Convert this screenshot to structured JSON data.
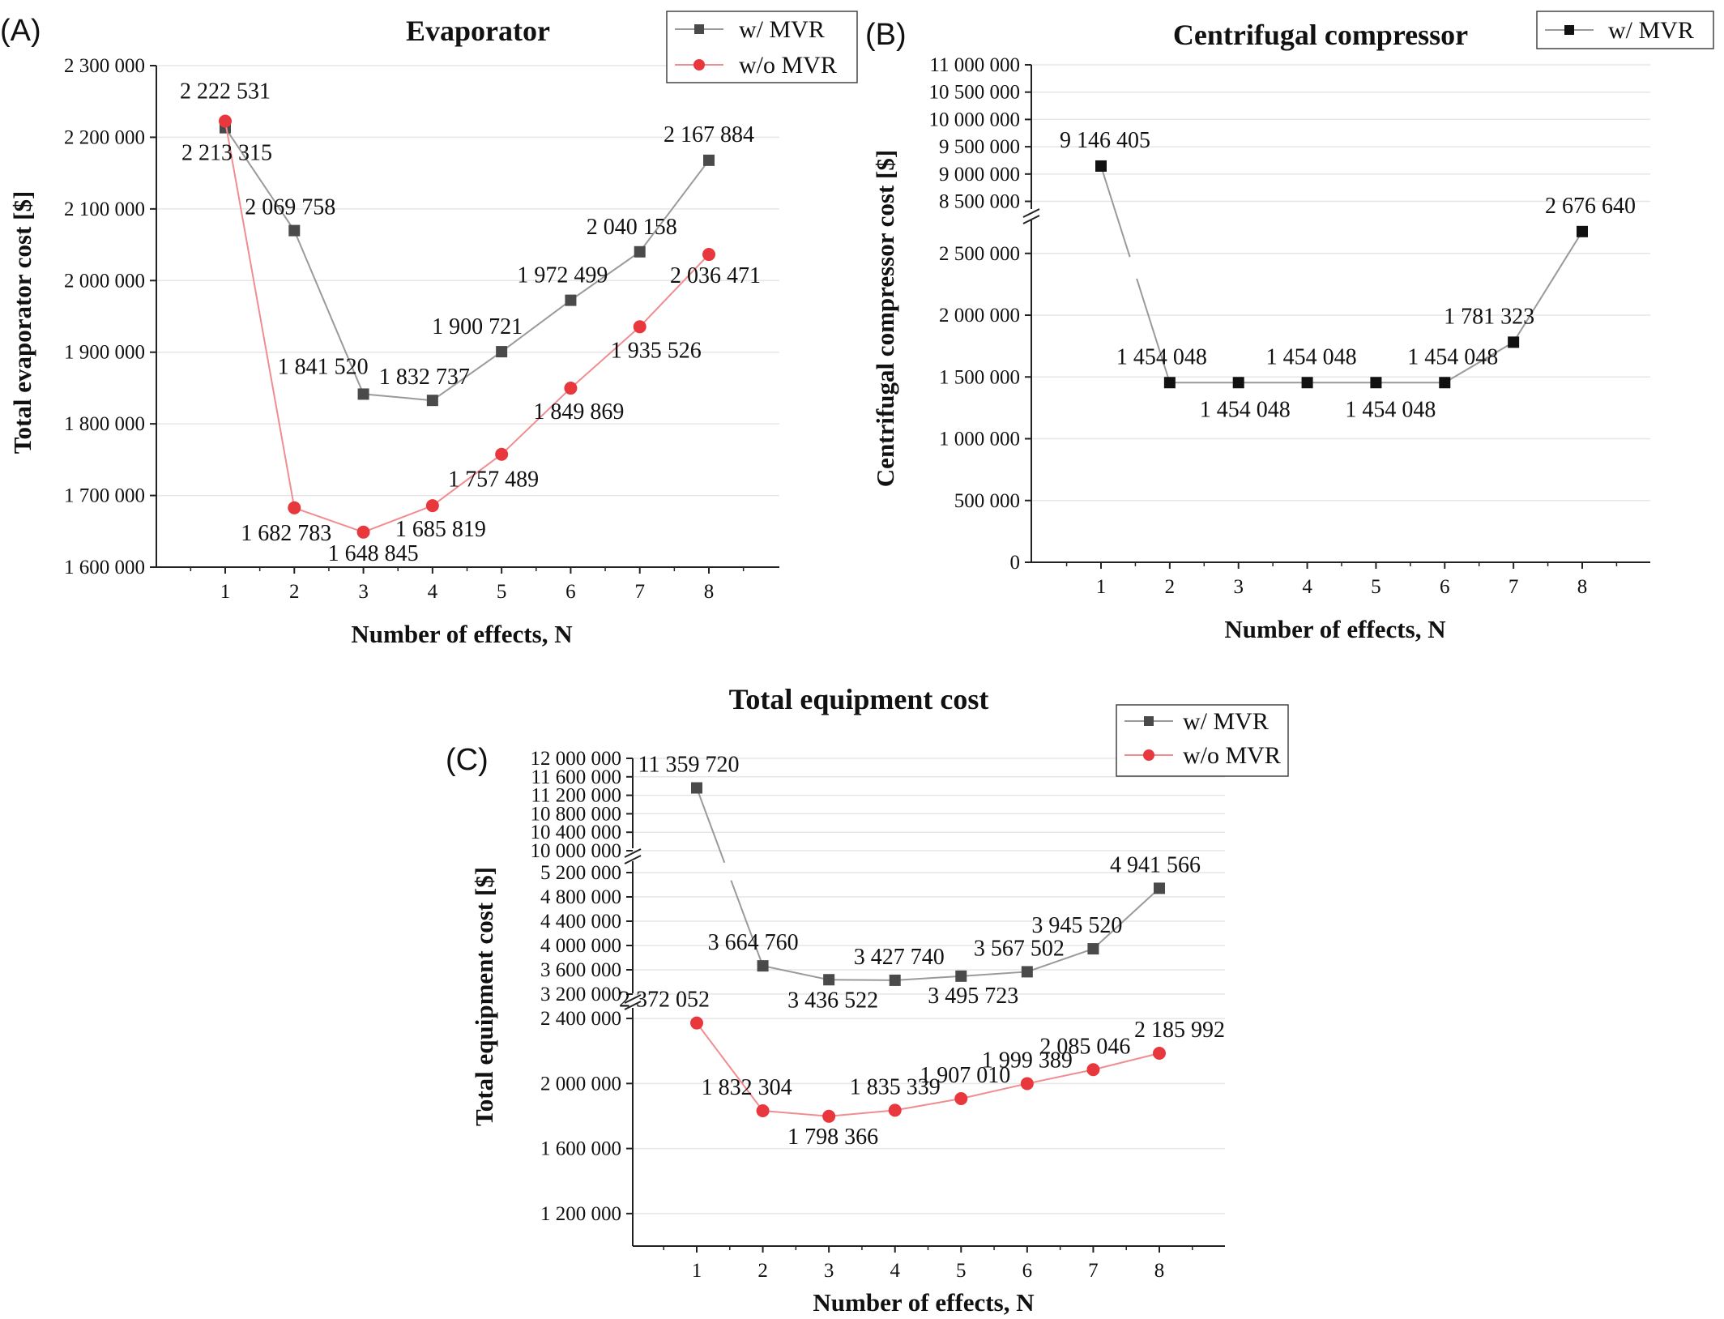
{
  "colors": {
    "w_mvr": "#4a4a4a",
    "w_mvr_line": "#9a9a9a",
    "w_mvr_black": "#111111",
    "wo_mvr": "#e8383d",
    "wo_mvr_line": "#f08d90"
  },
  "chart_data": [
    {
      "panel": "(A)",
      "type": "line",
      "title": "Evaporator",
      "xlabel": "Number of effects, N",
      "ylabel": "Total evaporator cost [$]",
      "x": [
        1,
        2,
        3,
        4,
        5,
        6,
        7,
        8
      ],
      "ylim": [
        1600000,
        2300000
      ],
      "yticks": [
        "1 600 000",
        "1 700 000",
        "1 800 000",
        "1 900 000",
        "2 000 000",
        "2 100 000",
        "2 200 000",
        "2 300 000"
      ],
      "series": [
        {
          "name": "w/ MVR",
          "marker": "square",
          "values": [
            2213315,
            2069758,
            1841520,
            1832737,
            1900721,
            1972499,
            2040158,
            2167884
          ],
          "labels": [
            "2 213 315",
            "2 069 758",
            "1 841 520",
            "1 832 737",
            "1 900 721",
            "1 972 499",
            "2 040 158",
            "2 167 884"
          ]
        },
        {
          "name": "w/o MVR",
          "marker": "circle",
          "values": [
            2222531,
            1682783,
            1648845,
            1685819,
            1757489,
            1849869,
            1935526,
            2036471
          ],
          "labels": [
            "2 222 531",
            "1 682 783",
            "1 648 845",
            "1 685 819",
            "1 757 489",
            "1 849 869",
            "1 935 526",
            "2 036 471"
          ]
        }
      ],
      "legend": "top-right"
    },
    {
      "panel": "(B)",
      "type": "line",
      "title": "Centrifugal compressor",
      "xlabel": "Number of effects, N",
      "ylabel": "Centrifugal compressor cost [$]",
      "x": [
        1,
        2,
        3,
        4,
        5,
        6,
        7,
        8
      ],
      "axis_break": true,
      "ylim_lower": [
        0,
        2800000
      ],
      "ylim_upper": [
        8300000,
        11000000
      ],
      "yticks_lower": [
        "0",
        "500 000",
        "1 000 000",
        "1 500 000",
        "2 000 000",
        "2 500 000"
      ],
      "yticks_upper": [
        "8 500 000",
        "9 000 000",
        "9 500 000",
        "10 000 000",
        "10 500 000",
        "11 000 000"
      ],
      "series": [
        {
          "name": "w/ MVR",
          "marker": "square",
          "values": [
            9146405,
            1454048,
            1454048,
            1454048,
            1454048,
            1454048,
            1781323,
            2676640
          ],
          "labels": [
            "9 146 405",
            "1 454 048",
            "1 454 048",
            "1 454 048",
            "1 454 048",
            "1 454 048",
            "1 781 323",
            "2 676 640"
          ]
        }
      ],
      "legend": "top-right"
    },
    {
      "panel": "(C)",
      "type": "line",
      "title": "Total equipment cost",
      "xlabel": "Number of effects, N",
      "ylabel": "Total equipment cost [$]",
      "x": [
        1,
        2,
        3,
        4,
        5,
        6,
        7,
        8
      ],
      "axis_breaks": 2,
      "ylim_lower": [
        1000000,
        2500000
      ],
      "ylim_middle": [
        3000000,
        5400000
      ],
      "ylim_upper": [
        10000000,
        12000000
      ],
      "yticks_lower": [
        "1 200 000",
        "1 600 000",
        "2 000 000",
        "2 400 000"
      ],
      "yticks_middle": [
        "3 200 000",
        "3 600 000",
        "4 000 000",
        "4 400 000",
        "4 800 000",
        "5 200 000"
      ],
      "yticks_upper": [
        "10 000 000",
        "10 400 000",
        "10 800 000",
        "11 200 000",
        "11 600 000",
        "12 000 000"
      ],
      "series": [
        {
          "name": "w/ MVR",
          "marker": "square",
          "values": [
            11359720,
            3664760,
            3436522,
            3427740,
            3495723,
            3567502,
            3945520,
            4941566
          ],
          "labels": [
            "11 359 720",
            "3 664 760",
            "3 436 522",
            "3 427 740",
            "3 495 723",
            "3 567 502",
            "3 945 520",
            "4 941 566"
          ]
        },
        {
          "name": "w/o MVR",
          "marker": "circle",
          "values": [
            2372052,
            1832304,
            1798366,
            1835339,
            1907010,
            1999389,
            2085046,
            2185992
          ],
          "labels": [
            "2 372 052",
            "1 832 304",
            "1 798 366",
            "1 835 339",
            "1 907 010",
            "1 999 389",
            "2 085 046",
            "2 185 992"
          ]
        }
      ],
      "legend": "top-right"
    }
  ]
}
